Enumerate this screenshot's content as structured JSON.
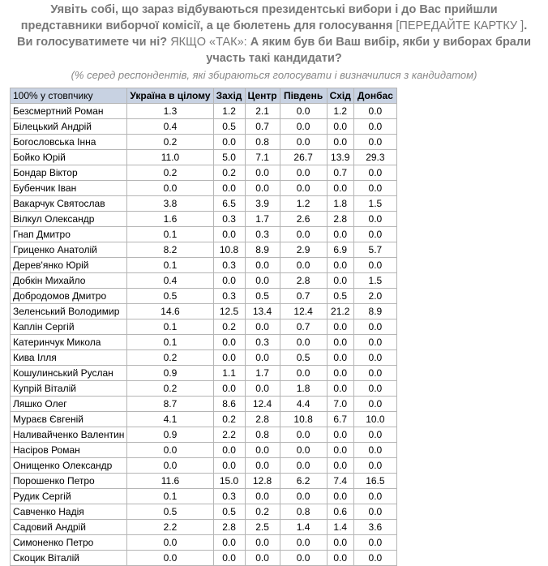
{
  "header": {
    "title_parts": [
      "Уявіть собі, що зараз відбуваються президентські вибори і до Вас прийшли представники виборчої комісії, а це бюлетень для голосування ",
      "[ПЕРЕДАЙТЕ КАРТКУ ]",
      ". Ви голосуватимете чи ні? ",
      "ЯКЩО «ТАК»:",
      " А яким був би Ваш вибір, якби у виборах брали участь такі кандидати?"
    ],
    "subtitle": "(% серед респондентів, які збираються голосувати і визначилися з кандидатом)"
  },
  "table": {
    "columns": [
      "100% у стовпчику",
      "Україна в цілому",
      "Захід",
      "Центр",
      "Південь",
      "Схід",
      "Донбас"
    ],
    "rows": [
      [
        "Безсмертний Роман",
        "1.3",
        "1.2",
        "2.1",
        "0.0",
        "1.2",
        "0.0"
      ],
      [
        "Білецький Андрій",
        "0.4",
        "0.5",
        "0.7",
        "0.0",
        "0.0",
        "0.0"
      ],
      [
        "Богословська Інна",
        "0.2",
        "0.0",
        "0.8",
        "0.0",
        "0.0",
        "0.0"
      ],
      [
        "Бойко Юрій",
        "11.0",
        "5.0",
        "7.1",
        "26.7",
        "13.9",
        "29.3"
      ],
      [
        "Бондар Віктор",
        "0.2",
        "0.2",
        "0.0",
        "0.0",
        "0.7",
        "0.0"
      ],
      [
        "Бубенчик Іван",
        "0.0",
        "0.0",
        "0.0",
        "0.0",
        "0.0",
        "0.0"
      ],
      [
        "Вакарчук Святослав",
        "3.8",
        "6.5",
        "3.9",
        "1.2",
        "1.8",
        "1.5"
      ],
      [
        "Вілкул Олександр",
        "1.6",
        "0.3",
        "1.7",
        "2.6",
        "2.8",
        "0.0"
      ],
      [
        "Гнап Дмитро",
        "0.1",
        "0.0",
        "0.3",
        "0.0",
        "0.0",
        "0.0"
      ],
      [
        "Гриценко Анатолій",
        "8.2",
        "10.8",
        "8.9",
        "2.9",
        "6.9",
        "5.7"
      ],
      [
        "Дерев'янко Юрій",
        "0.1",
        "0.3",
        "0.0",
        "0.0",
        "0.0",
        "0.0"
      ],
      [
        "Добкін Михайло",
        "0.4",
        "0.0",
        "0.0",
        "2.8",
        "0.0",
        "1.5"
      ],
      [
        "Добродомов Дмитро",
        "0.5",
        "0.3",
        "0.5",
        "0.7",
        "0.5",
        "2.0"
      ],
      [
        "Зеленський Володимир",
        "14.6",
        "12.5",
        "13.4",
        "12.4",
        "21.2",
        "8.9"
      ],
      [
        "Каплін Сергій",
        "0.1",
        "0.2",
        "0.0",
        "0.7",
        "0.0",
        "0.0"
      ],
      [
        "Катеринчук Микола",
        "0.1",
        "0.0",
        "0.3",
        "0.0",
        "0.0",
        "0.0"
      ],
      [
        "Кива Ілля",
        "0.2",
        "0.0",
        "0.0",
        "0.5",
        "0.0",
        "0.0"
      ],
      [
        "Кошулинський Руслан",
        "0.9",
        "1.1",
        "1.7",
        "0.0",
        "0.0",
        "0.0"
      ],
      [
        "Купрій Віталій",
        "0.2",
        "0.0",
        "0.0",
        "1.8",
        "0.0",
        "0.0"
      ],
      [
        "Ляшко Олег",
        "8.7",
        "8.6",
        "12.4",
        "4.4",
        "7.0",
        "0.0"
      ],
      [
        "Мураєв Євгеній",
        "4.1",
        "0.2",
        "2.8",
        "10.8",
        "6.7",
        "10.0"
      ],
      [
        "Наливайченко Валентин",
        "0.9",
        "2.2",
        "0.8",
        "0.0",
        "0.0",
        "0.0"
      ],
      [
        "Насіров Роман",
        "0.0",
        "0.0",
        "0.0",
        "0.0",
        "0.0",
        "0.0"
      ],
      [
        "Онищенко Олександр",
        "0.0",
        "0.0",
        "0.0",
        "0.0",
        "0.0",
        "0.0"
      ],
      [
        "Порошенко Петро",
        "11.6",
        "15.0",
        "12.8",
        "6.2",
        "7.4",
        "16.5"
      ],
      [
        "Рудик Сергій",
        "0.1",
        "0.3",
        "0.0",
        "0.0",
        "0.0",
        "0.0"
      ],
      [
        "Савченко Надія",
        "0.5",
        "0.5",
        "0.2",
        "0.8",
        "0.6",
        "0.0"
      ],
      [
        "Садовий Андрій",
        "2.2",
        "2.8",
        "2.5",
        "1.4",
        "1.4",
        "3.6"
      ],
      [
        "Симоненко Петро",
        "0.0",
        "0.0",
        "0.0",
        "0.0",
        "0.0",
        "0.0"
      ],
      [
        "Скоцик Віталій",
        "0.0",
        "0.0",
        "0.0",
        "0.0",
        "0.0",
        "0.0"
      ]
    ]
  }
}
